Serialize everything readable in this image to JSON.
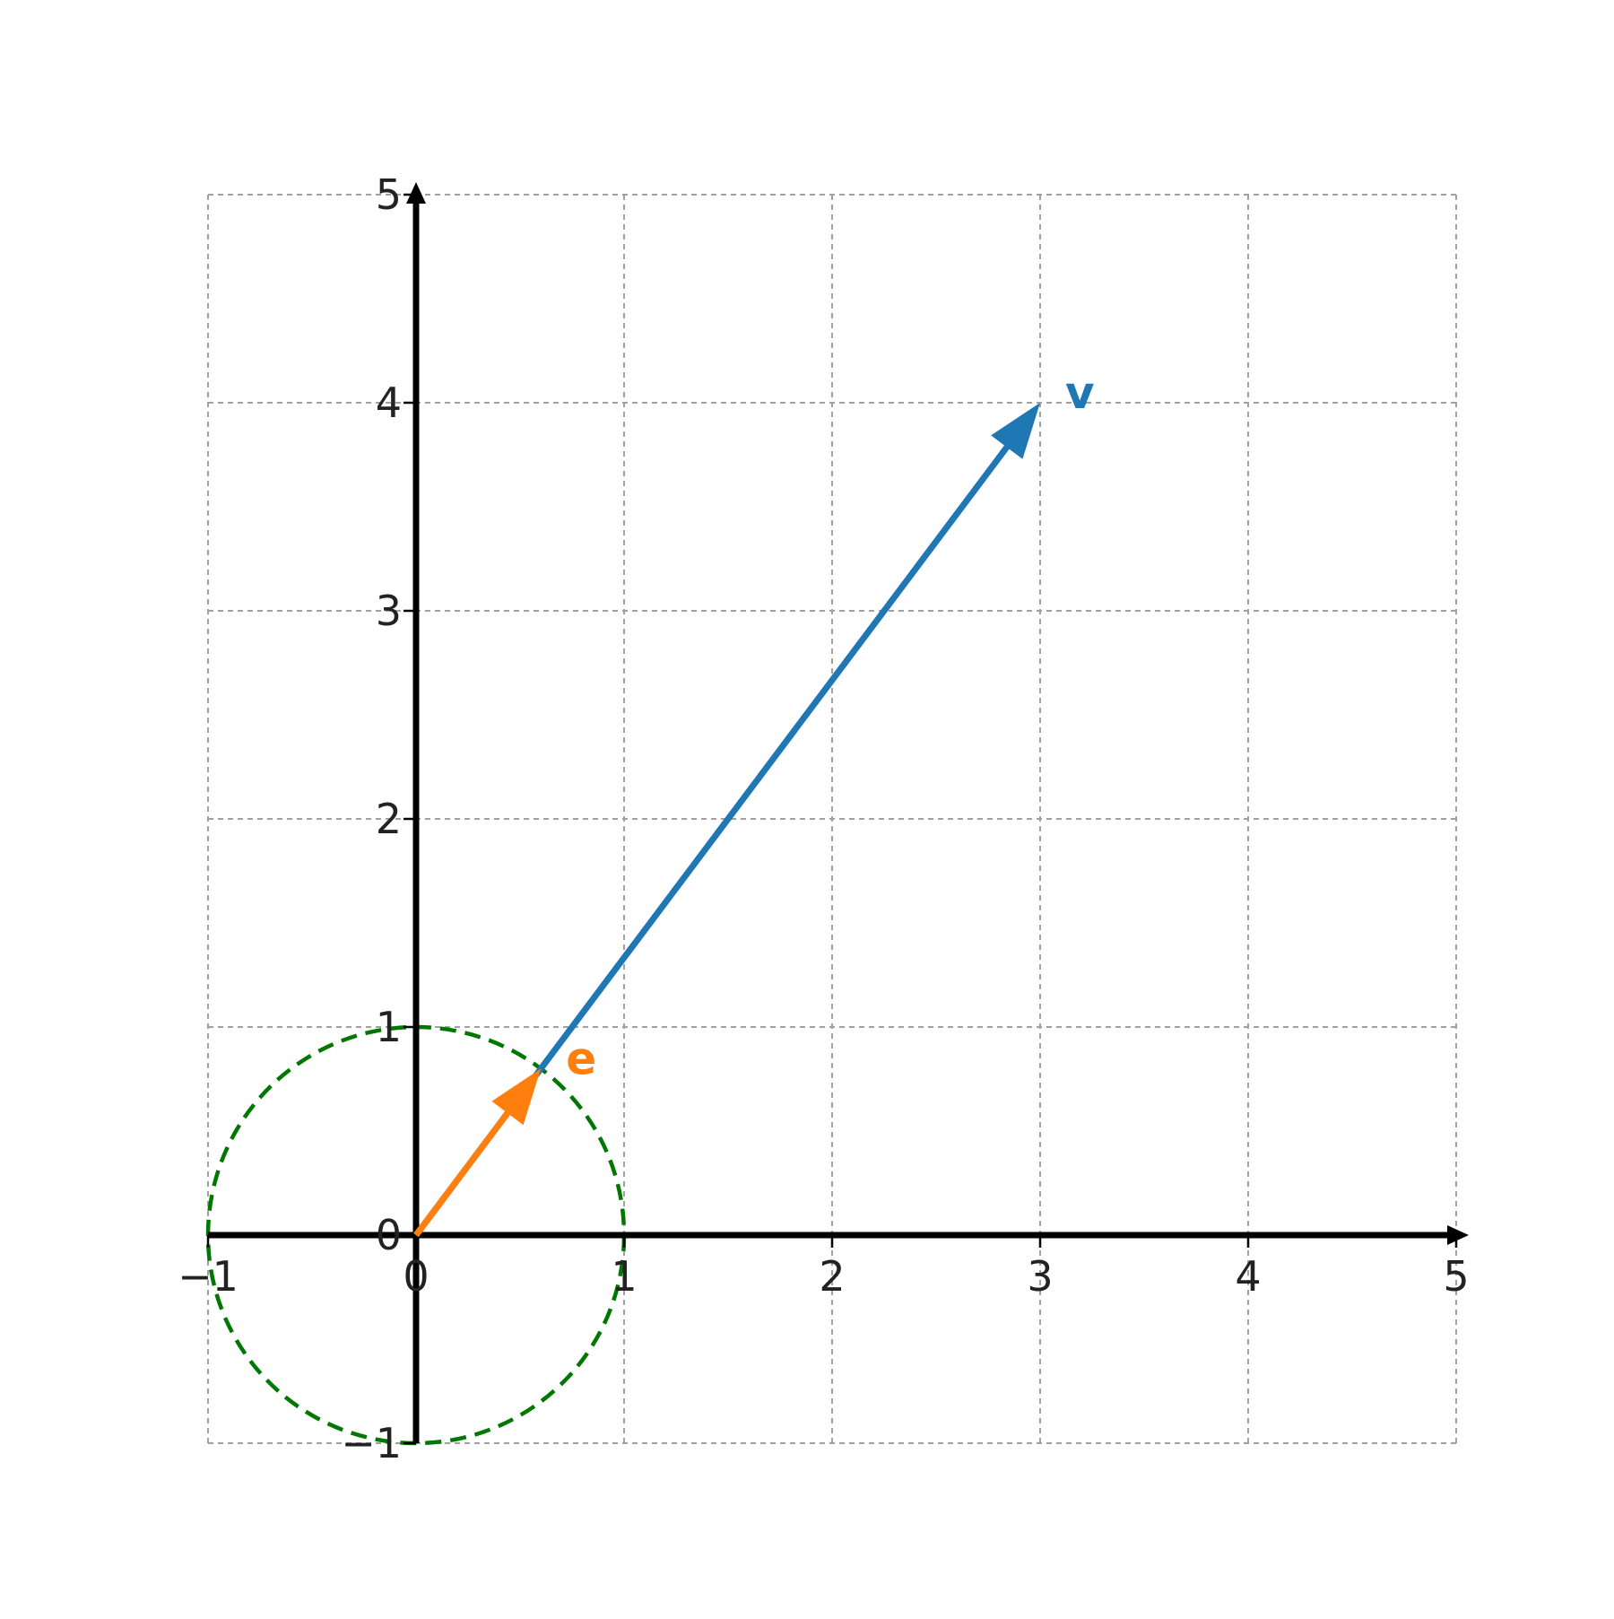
{
  "chart_data": {
    "type": "vector-plot",
    "xlim": [
      -1,
      5
    ],
    "ylim": [
      -1,
      5
    ],
    "x_ticks": [
      -1,
      0,
      1,
      2,
      3,
      4,
      5
    ],
    "y_ticks": [
      -1,
      0,
      1,
      2,
      3,
      4,
      5
    ],
    "x_tick_labels": [
      "−1",
      "0",
      "1",
      "2",
      "3",
      "4",
      "5"
    ],
    "y_tick_labels": [
      "−1",
      "0",
      "1",
      "2",
      "3",
      "4",
      "5"
    ],
    "grid": true,
    "grid_style": "dashed",
    "vectors": [
      {
        "label": "v",
        "x0": 0,
        "y0": 0,
        "x1": 3,
        "y1": 4,
        "color": "#1f77b4"
      },
      {
        "label": "e",
        "x0": 0,
        "y0": 0,
        "x1": 0.6,
        "y1": 0.8,
        "color": "#ff7f0e"
      }
    ],
    "circle": {
      "cx": 0,
      "cy": 0,
      "r": 1,
      "color": "#007700",
      "style": "dashed"
    },
    "colors": {
      "axis": "#000000",
      "grid": "#a0a0a0",
      "tick_text": "#222222"
    }
  }
}
